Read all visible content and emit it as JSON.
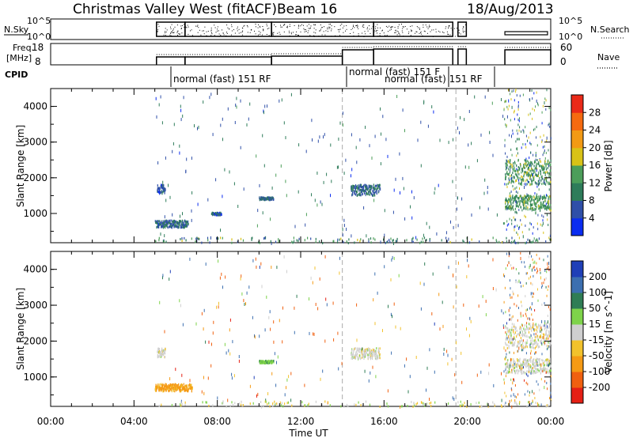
{
  "header": {
    "title": "Christmas Valley West (fitACF)",
    "beam": "Beam 16",
    "date": "18/Aug/2013"
  },
  "strips": {
    "nsky_label": "N.Sky",
    "nsearch_label": "N.Search",
    "noise_ticks_left": [
      "10^5",
      "10^0"
    ],
    "noise_ticks_right": [
      "10^5",
      "10^0"
    ],
    "freq_label_1": "Freq.",
    "freq_label_2": "[MHz]",
    "freq_ticks": [
      "18",
      "8"
    ],
    "nave_ticks": [
      "60",
      "0"
    ],
    "nave_label": "Nave",
    "cpid_label": "CPID",
    "cpid_names": [
      "normal (fast) 151 RF",
      "normal (fast) 151 F",
      "normal (fast) 151 RF"
    ]
  },
  "axes": {
    "ylabel": "Slant Range [km]",
    "xlabel": "Time UT",
    "x_ticks": [
      "00:00",
      "04:00",
      "08:00",
      "12:00",
      "16:00",
      "20:00",
      "00:00"
    ],
    "y_ticks": [
      "1000",
      "2000",
      "3000",
      "4000"
    ]
  },
  "colorbars": {
    "power": {
      "label": "Power [dB]",
      "ticks": [
        "4",
        "8",
        "12",
        "16",
        "20",
        "24",
        "28"
      ],
      "colors": [
        "#0a2cf0",
        "#2f4fa8",
        "#2e7c5a",
        "#4c9e5a",
        "#d9c217",
        "#f29a14",
        "#f56a10",
        "#ea2a18"
      ]
    },
    "velocity": {
      "label": "Velocity [m s^-1]",
      "ticks": [
        "200",
        "100",
        "50",
        "15",
        "-15",
        "-50",
        "-100",
        "-200"
      ],
      "colors": [
        "#1f3fb7",
        "#3c6fb0",
        "#2f7d55",
        "#7ed34a",
        "#cfcfcf",
        "#f2c22c",
        "#f59a14",
        "#f06010",
        "#e52015"
      ]
    }
  },
  "chart_data": [
    {
      "type": "heatmap",
      "title": "Power",
      "xlabel": "Time UT",
      "ylabel": "Slant Range [km]",
      "xlim": [
        0,
        24
      ],
      "ylim": [
        180,
        4500
      ],
      "colorbar": "Power [dB]",
      "clim": [
        0,
        31
      ],
      "patches": [
        {
          "t": [
            5.0,
            6.6
          ],
          "r": [
            600,
            800
          ],
          "value": 8
        },
        {
          "t": [
            5.1,
            5.5
          ],
          "r": [
            1550,
            1800
          ],
          "value": 7
        },
        {
          "t": [
            10.0,
            10.7
          ],
          "r": [
            1380,
            1450
          ],
          "value": 8
        },
        {
          "t": [
            7.7,
            8.2
          ],
          "r": [
            950,
            1020
          ],
          "value": 7
        },
        {
          "t": [
            14.4,
            15.8
          ],
          "r": [
            1500,
            1800
          ],
          "value": 8
        },
        {
          "t": [
            21.8,
            24.0
          ],
          "r": [
            1100,
            1500
          ],
          "value": 13
        },
        {
          "t": [
            21.8,
            24.0
          ],
          "r": [
            1800,
            2500
          ],
          "value": 13
        }
      ]
    },
    {
      "type": "heatmap",
      "title": "Velocity",
      "xlabel": "Time UT",
      "ylabel": "Slant Range [km]",
      "xlim": [
        0,
        24
      ],
      "ylim": [
        180,
        4500
      ],
      "colorbar": "Velocity [m s^-1]",
      "clim": [
        -250,
        250
      ],
      "patches": [
        {
          "t": [
            5.0,
            6.8
          ],
          "r": [
            600,
            800
          ],
          "value": -60
        },
        {
          "t": [
            5.1,
            5.5
          ],
          "r": [
            1550,
            1800
          ],
          "value": 0
        },
        {
          "t": [
            10.0,
            10.7
          ],
          "r": [
            1380,
            1450
          ],
          "value": 40
        },
        {
          "t": [
            14.4,
            15.8
          ],
          "r": [
            1500,
            1800
          ],
          "value": 0
        },
        {
          "t": [
            21.8,
            24.0
          ],
          "r": [
            1100,
            1500
          ],
          "value": 0
        },
        {
          "t": [
            21.8,
            24.0
          ],
          "r": [
            1800,
            2500
          ],
          "value": 0
        }
      ]
    }
  ]
}
